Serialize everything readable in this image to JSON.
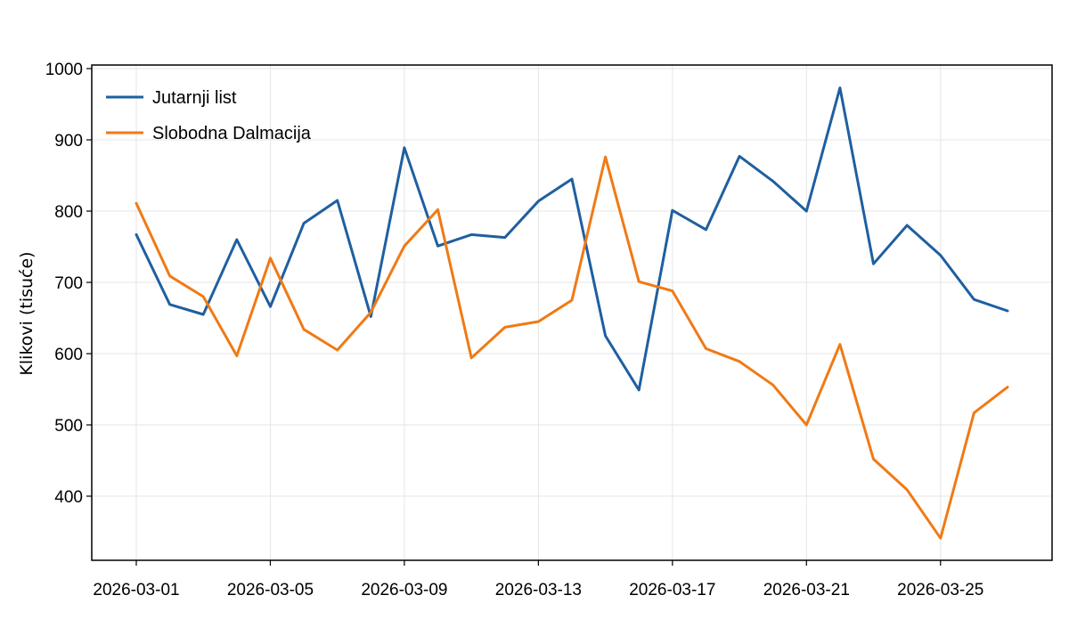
{
  "chart_data": {
    "type": "line",
    "title": "",
    "xlabel": "",
    "ylabel": "Klikovi (tisuće)",
    "x": [
      "2026-03-01",
      "2026-03-02",
      "2026-03-03",
      "2026-03-04",
      "2026-03-05",
      "2026-03-06",
      "2026-03-07",
      "2026-03-08",
      "2026-03-09",
      "2026-03-10",
      "2026-03-11",
      "2026-03-12",
      "2026-03-13",
      "2026-03-14",
      "2026-03-15",
      "2026-03-16",
      "2026-03-17",
      "2026-03-18",
      "2026-03-19",
      "2026-03-20",
      "2026-03-21",
      "2026-03-22",
      "2026-03-23",
      "2026-03-24",
      "2026-03-25",
      "2026-03-26",
      "2026-03-27"
    ],
    "x_ticks": [
      "2026-03-01",
      "2026-03-05",
      "2026-03-09",
      "2026-03-13",
      "2026-03-17",
      "2026-03-21",
      "2026-03-25"
    ],
    "y_ticks": [
      400,
      500,
      600,
      700,
      800,
      900,
      1000
    ],
    "ylim": [
      310,
      1005
    ],
    "grid": true,
    "legend_position": "top-left",
    "series": [
      {
        "name": "Jutarnji list",
        "color": "#1f5fa0",
        "values": [
          767,
          669,
          655,
          760,
          666,
          783,
          815,
          652,
          889,
          751,
          767,
          763,
          814,
          845,
          625,
          549,
          801,
          774,
          877,
          842,
          800,
          973,
          726,
          780,
          738,
          676,
          660
        ]
      },
      {
        "name": "Slobodna Dalmacija",
        "color": "#f07a15",
        "values": [
          811,
          709,
          680,
          597,
          734,
          634,
          605,
          658,
          751,
          802,
          594,
          637,
          645,
          675,
          876,
          701,
          688,
          607,
          589,
          556,
          500,
          613,
          452,
          409,
          341,
          517,
          553
        ]
      }
    ]
  }
}
